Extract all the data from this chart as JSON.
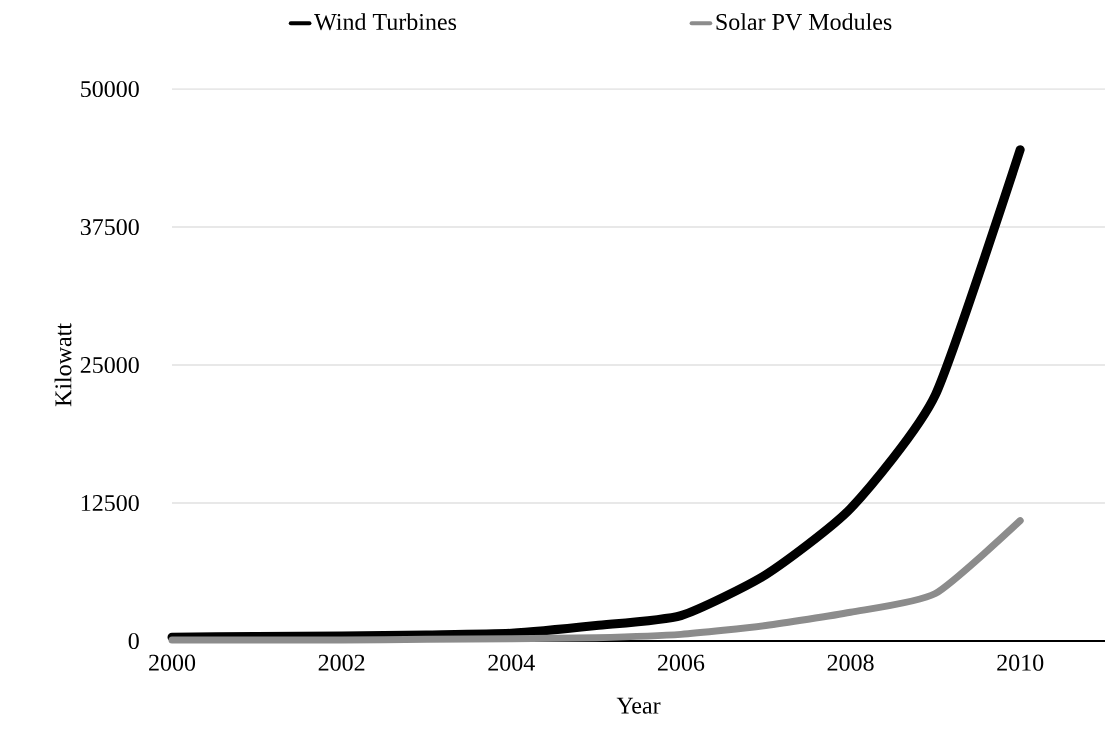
{
  "chart_data": {
    "type": "line",
    "xlabel": "Year",
    "ylabel": "Kilowatt",
    "x": [
      2000,
      2001,
      2002,
      2003,
      2004,
      2005,
      2006,
      2007,
      2008,
      2009,
      2010
    ],
    "series": [
      {
        "name": "Wind Turbines",
        "color": "#000000",
        "values": [
          350,
          400,
          450,
          550,
          700,
          1400,
          2300,
          6000,
          12000,
          22300,
          44500
        ]
      },
      {
        "name": "Solar PV Modules",
        "color": "#8c8c8c",
        "values": [
          100,
          100,
          100,
          150,
          200,
          300,
          600,
          1400,
          2600,
          4300,
          10900
        ]
      }
    ],
    "xlim": [
      2000,
      2011
    ],
    "ylim": [
      0,
      50000
    ],
    "xticks": [
      2000,
      2002,
      2004,
      2006,
      2008,
      2010
    ],
    "yticks": [
      0,
      12500,
      25000,
      37500,
      50000
    ],
    "grid": "y",
    "legend": "top",
    "marker": "none",
    "line_style": "solid"
  }
}
